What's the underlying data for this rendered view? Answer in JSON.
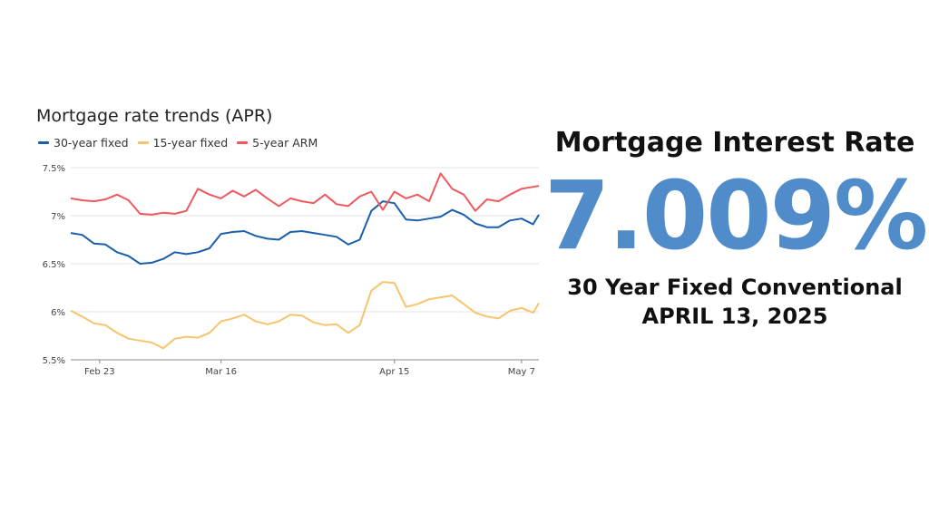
{
  "chart_data": {
    "type": "line",
    "title": "Mortgage rate trends (APR)",
    "ylim": [
      5.5,
      7.5
    ],
    "yticks": [
      5.5,
      6,
      6.5,
      7,
      7.5
    ],
    "ytick_labels": [
      "5.5%",
      "6%",
      "6.5%",
      "7%",
      "7.5%"
    ],
    "xlim": [
      "2025-02-18",
      "2025-05-10"
    ],
    "xticks": [
      "2025-02-23",
      "2025-03-16",
      "2025-04-15",
      "2025-05-07"
    ],
    "xtick_labels": [
      "Feb 23",
      "Mar 16",
      "Apr 15",
      "May 7"
    ],
    "grid": "horizontal",
    "legend_position": "top-left",
    "x": [
      "2025-02-18",
      "2025-02-20",
      "2025-02-22",
      "2025-02-24",
      "2025-02-26",
      "2025-02-28",
      "2025-03-02",
      "2025-03-04",
      "2025-03-06",
      "2025-03-08",
      "2025-03-10",
      "2025-03-12",
      "2025-03-14",
      "2025-03-16",
      "2025-03-18",
      "2025-03-20",
      "2025-03-22",
      "2025-03-24",
      "2025-03-26",
      "2025-03-28",
      "2025-03-30",
      "2025-04-01",
      "2025-04-03",
      "2025-04-05",
      "2025-04-07",
      "2025-04-09",
      "2025-04-11",
      "2025-04-13",
      "2025-04-15",
      "2025-04-17",
      "2025-04-19",
      "2025-04-21",
      "2025-04-23",
      "2025-04-25",
      "2025-04-27",
      "2025-04-29",
      "2025-05-01",
      "2025-05-03",
      "2025-05-05",
      "2025-05-07",
      "2025-05-09",
      "2025-05-10"
    ],
    "series": [
      {
        "name": "30-year fixed",
        "color": "#1a5fad",
        "values": [
          6.82,
          6.8,
          6.71,
          6.7,
          6.62,
          6.58,
          6.5,
          6.51,
          6.55,
          6.62,
          6.6,
          6.62,
          6.66,
          6.81,
          6.83,
          6.84,
          6.79,
          6.76,
          6.75,
          6.83,
          6.84,
          6.82,
          6.8,
          6.78,
          6.7,
          6.75,
          7.05,
          7.15,
          7.13,
          6.96,
          6.95,
          6.97,
          6.99,
          7.06,
          7.01,
          6.92,
          6.88,
          6.88,
          6.95,
          6.97,
          6.91,
          7.01
        ]
      },
      {
        "name": "15-year fixed",
        "color": "#f7c46c",
        "values": [
          6.01,
          5.95,
          5.88,
          5.86,
          5.78,
          5.72,
          5.7,
          5.68,
          5.62,
          5.72,
          5.74,
          5.73,
          5.78,
          5.9,
          5.93,
          5.97,
          5.9,
          5.87,
          5.9,
          5.97,
          5.96,
          5.89,
          5.86,
          5.87,
          5.78,
          5.86,
          6.22,
          6.31,
          6.3,
          6.05,
          6.08,
          6.13,
          6.15,
          6.17,
          6.08,
          5.99,
          5.95,
          5.93,
          6.01,
          6.04,
          5.99,
          6.09
        ]
      },
      {
        "name": "5-year ARM",
        "color": "#f0585d",
        "values": [
          7.18,
          7.16,
          7.15,
          7.17,
          7.22,
          7.16,
          7.02,
          7.01,
          7.03,
          7.02,
          7.05,
          7.28,
          7.22,
          7.18,
          7.26,
          7.2,
          7.27,
          7.18,
          7.1,
          7.18,
          7.15,
          7.13,
          7.22,
          7.12,
          7.1,
          7.2,
          7.25,
          7.06,
          7.25,
          7.18,
          7.22,
          7.15,
          7.44,
          7.28,
          7.22,
          7.05,
          7.17,
          7.15,
          7.22,
          7.28,
          7.3,
          7.31
        ]
      }
    ]
  },
  "panel": {
    "heading": "Mortgage Interest Rate",
    "rate": "7.009%",
    "loan_type": "30 Year Fixed Conventional",
    "date": "APRIL 13, 2025",
    "rate_color": "#4f8cc9"
  }
}
